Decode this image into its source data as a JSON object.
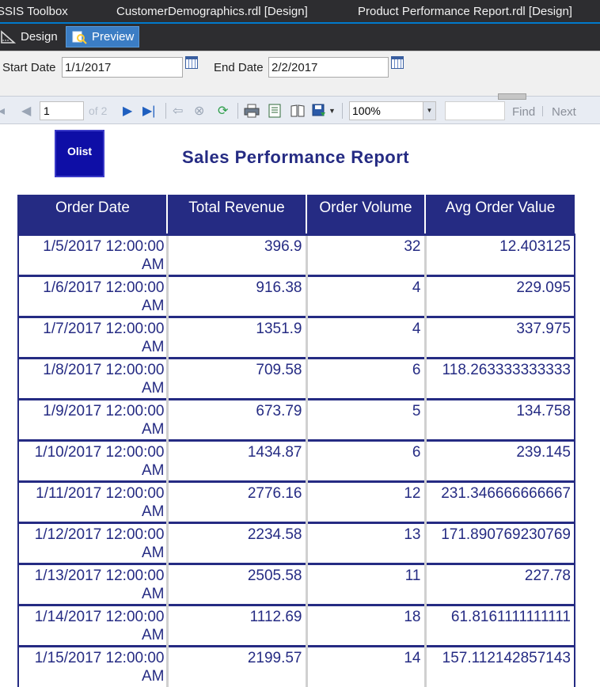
{
  "tabs": {
    "ssis_toolbox": "SSIS Toolbox",
    "customer_demographics": "CustomerDemographics.rdl [Design]",
    "product_performance": "Product Performance Report.rdl [Design]"
  },
  "modes": {
    "design": "Design",
    "preview": "Preview"
  },
  "parameters": {
    "start_label": "Start Date",
    "start_value": "1/1/2017",
    "end_label": "End Date",
    "end_value": "2/2/2017"
  },
  "toolbar": {
    "page_number": "1",
    "page_of": "of 2",
    "zoom": "100%",
    "find": "Find",
    "next": "Next"
  },
  "report": {
    "logo_text": "Olist",
    "title": "Sales Performance Report",
    "columns": [
      "Order Date",
      "Total Revenue",
      "Order Volume",
      "Avg Order Value"
    ],
    "rows": [
      {
        "date": "1/5/2017 12:00:00 AM",
        "revenue": "396.9",
        "volume": "32",
        "avg": "12.403125"
      },
      {
        "date": "1/6/2017 12:00:00 AM",
        "revenue": "916.38",
        "volume": "4",
        "avg": "229.095"
      },
      {
        "date": "1/7/2017 12:00:00 AM",
        "revenue": "1351.9",
        "volume": "4",
        "avg": "337.975"
      },
      {
        "date": "1/8/2017 12:00:00 AM",
        "revenue": "709.58",
        "volume": "6",
        "avg": "118.263333333333"
      },
      {
        "date": "1/9/2017 12:00:00 AM",
        "revenue": "673.79",
        "volume": "5",
        "avg": "134.758"
      },
      {
        "date": "1/10/2017 12:00:00 AM",
        "revenue": "1434.87",
        "volume": "6",
        "avg": "239.145"
      },
      {
        "date": "1/11/2017 12:00:00 AM",
        "revenue": "2776.16",
        "volume": "12",
        "avg": "231.346666666667"
      },
      {
        "date": "1/12/2017 12:00:00 AM",
        "revenue": "2234.58",
        "volume": "13",
        "avg": "171.890769230769"
      },
      {
        "date": "1/13/2017 12:00:00 AM",
        "revenue": "2505.58",
        "volume": "11",
        "avg": "227.78"
      },
      {
        "date": "1/14/2017 12:00:00 AM",
        "revenue": "1112.69",
        "volume": "18",
        "avg": "61.8161111111111"
      },
      {
        "date": "1/15/2017 12:00:00 AM",
        "revenue": "2199.57",
        "volume": "14",
        "avg": "157.112142857143"
      }
    ]
  }
}
